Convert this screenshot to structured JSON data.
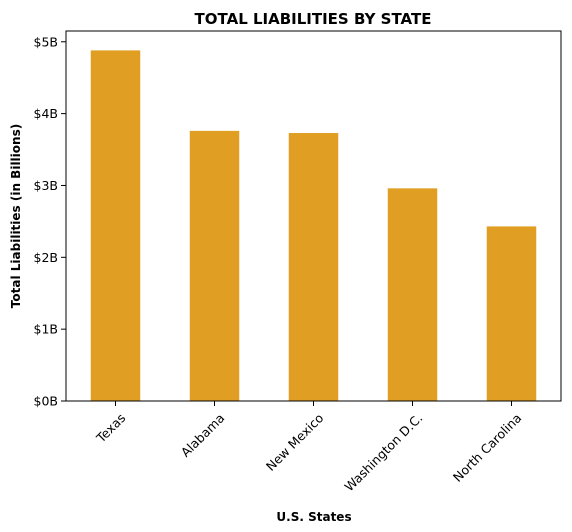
{
  "chart_data": {
    "type": "bar",
    "title": "TOTAL LIABILITIES BY STATE",
    "xlabel": "U.S. States",
    "ylabel": "Total Liabilities (in Billions)",
    "categories": [
      "Texas",
      "Alabama",
      "New Mexico",
      "Washington D.C.",
      "North Carolina"
    ],
    "values": [
      4.88,
      3.76,
      3.73,
      2.96,
      2.43
    ],
    "ylim": [
      0,
      5.15
    ],
    "yticks": [
      0,
      1,
      2,
      3,
      4,
      5
    ],
    "ytick_labels": [
      "$0B",
      "$1B",
      "$2B",
      "$3B",
      "$4B",
      "$5B"
    ],
    "bar_color": "#e09e23",
    "grid": false,
    "legend": "none"
  }
}
